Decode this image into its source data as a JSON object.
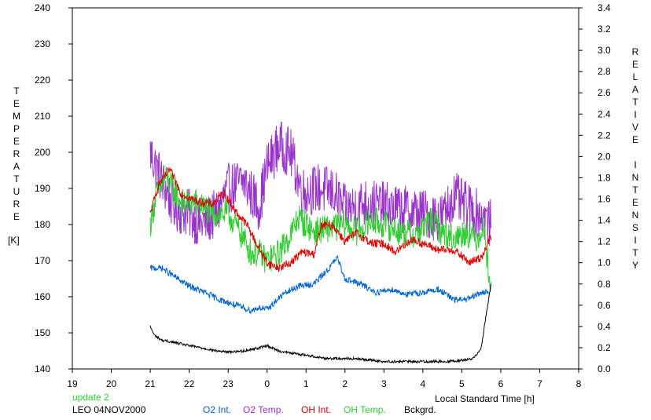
{
  "chart_data": {
    "type": "line",
    "title": "",
    "xlabel": "Local Standard Time [h]",
    "ylabel_left_letters": [
      "T",
      "E",
      "M",
      "P",
      "E",
      "R",
      "A",
      "T",
      "U",
      "R",
      "E"
    ],
    "ylabel_left_unit": "[K]",
    "ylabel_right_word1": [
      "R",
      "E",
      "L",
      "A",
      "T",
      "I",
      "V",
      "E"
    ],
    "ylabel_right_word2": [
      "I",
      "N",
      "T",
      "E",
      "N",
      "S",
      "I",
      "T",
      "Y"
    ],
    "x_ticks": [
      "19",
      "20",
      "21",
      "22",
      "23",
      "0",
      "1",
      "2",
      "3",
      "4",
      "5",
      "6",
      "7",
      "8"
    ],
    "y_left_ticks": [
      "140",
      "150",
      "160",
      "170",
      "180",
      "190",
      "200",
      "210",
      "220",
      "230",
      "240"
    ],
    "y_left_lim": [
      140,
      240
    ],
    "y_right_ticks": [
      "0.0",
      "0.2",
      "0.4",
      "0.6",
      "0.8",
      "1.0",
      "1.2",
      "1.4",
      "1.6",
      "1.8",
      "2.0",
      "2.2",
      "2.4",
      "2.6",
      "2.8",
      "3.0",
      "3.2",
      "3.4"
    ],
    "y_right_lim": [
      0,
      3.4
    ],
    "x_range_hours_from_19": [
      0,
      13
    ],
    "series": [
      {
        "name": "O2 Temp.",
        "color": "#9933cc",
        "axis": "left",
        "noise": 7,
        "points": [
          [
            21.0,
            200
          ],
          [
            21.3,
            192
          ],
          [
            21.6,
            185
          ],
          [
            22.0,
            183
          ],
          [
            22.3,
            180
          ],
          [
            22.7,
            183
          ],
          [
            23.0,
            190
          ],
          [
            23.4,
            192
          ],
          [
            23.8,
            185
          ],
          [
            24.0,
            196
          ],
          [
            24.3,
            202
          ],
          [
            24.6,
            200
          ],
          [
            24.9,
            189
          ],
          [
            25.3,
            190
          ],
          [
            25.7,
            189
          ],
          [
            26.0,
            184
          ],
          [
            26.5,
            186
          ],
          [
            27.0,
            185
          ],
          [
            27.5,
            184
          ],
          [
            28.0,
            183
          ],
          [
            28.5,
            182
          ],
          [
            28.8,
            188
          ],
          [
            29.1,
            185
          ],
          [
            29.4,
            183
          ],
          [
            29.5,
            183
          ],
          [
            29.75,
            180
          ]
        ]
      },
      {
        "name": "OH Temp.",
        "color": "#33cc33",
        "axis": "left",
        "noise": 4,
        "points": [
          [
            21.0,
            180
          ],
          [
            21.15,
            188
          ],
          [
            21.4,
            193
          ],
          [
            21.8,
            186
          ],
          [
            22.2,
            186
          ],
          [
            22.6,
            183
          ],
          [
            23.0,
            183
          ],
          [
            23.3,
            178
          ],
          [
            23.6,
            172
          ],
          [
            23.8,
            172
          ],
          [
            24.0,
            170
          ],
          [
            24.3,
            172
          ],
          [
            24.6,
            177
          ],
          [
            24.8,
            182
          ],
          [
            25.2,
            178
          ],
          [
            25.6,
            179
          ],
          [
            26.0,
            180
          ],
          [
            26.3,
            178
          ],
          [
            26.7,
            181
          ],
          [
            27.0,
            180
          ],
          [
            27.4,
            178
          ],
          [
            27.8,
            177
          ],
          [
            28.2,
            181
          ],
          [
            28.5,
            178
          ],
          [
            28.8,
            176
          ],
          [
            29.1,
            178
          ],
          [
            29.4,
            176
          ],
          [
            29.55,
            180
          ],
          [
            29.75,
            162
          ]
        ]
      },
      {
        "name": "OH Int.",
        "color": "#dd0000",
        "axis": "right",
        "noise": 0.04,
        "points": [
          [
            21.0,
            1.45
          ],
          [
            21.2,
            1.72
          ],
          [
            21.5,
            1.88
          ],
          [
            21.8,
            1.65
          ],
          [
            22.2,
            1.58
          ],
          [
            22.6,
            1.55
          ],
          [
            22.9,
            1.66
          ],
          [
            23.2,
            1.48
          ],
          [
            23.5,
            1.35
          ],
          [
            23.7,
            1.2
          ],
          [
            24.0,
            1.0
          ],
          [
            24.3,
            0.95
          ],
          [
            24.6,
            1.0
          ],
          [
            24.9,
            1.1
          ],
          [
            25.2,
            1.08
          ],
          [
            25.4,
            1.35
          ],
          [
            25.7,
            1.35
          ],
          [
            26.0,
            1.2
          ],
          [
            26.3,
            1.28
          ],
          [
            26.7,
            1.18
          ],
          [
            27.0,
            1.18
          ],
          [
            27.3,
            1.1
          ],
          [
            27.7,
            1.22
          ],
          [
            28.0,
            1.18
          ],
          [
            28.4,
            1.12
          ],
          [
            28.8,
            1.12
          ],
          [
            29.2,
            1.0
          ],
          [
            29.5,
            1.05
          ],
          [
            29.75,
            1.25
          ]
        ]
      },
      {
        "name": "O2 Int.",
        "color": "#0066cc",
        "axis": "right",
        "noise": 0.03,
        "points": [
          [
            21.0,
            0.95
          ],
          [
            21.3,
            0.95
          ],
          [
            21.7,
            0.85
          ],
          [
            22.0,
            0.78
          ],
          [
            22.4,
            0.72
          ],
          [
            22.8,
            0.65
          ],
          [
            23.2,
            0.6
          ],
          [
            23.6,
            0.55
          ],
          [
            23.8,
            0.58
          ],
          [
            24.0,
            0.56
          ],
          [
            24.4,
            0.7
          ],
          [
            24.8,
            0.78
          ],
          [
            25.2,
            0.8
          ],
          [
            25.6,
            0.95
          ],
          [
            25.8,
            1.05
          ],
          [
            26.0,
            0.85
          ],
          [
            26.4,
            0.8
          ],
          [
            26.8,
            0.72
          ],
          [
            27.2,
            0.75
          ],
          [
            27.6,
            0.7
          ],
          [
            28.0,
            0.72
          ],
          [
            28.4,
            0.75
          ],
          [
            28.8,
            0.65
          ],
          [
            29.2,
            0.66
          ],
          [
            29.5,
            0.72
          ],
          [
            29.7,
            0.72
          ]
        ]
      },
      {
        "name": "Bckgrd.",
        "color": "#000000",
        "axis": "right",
        "noise": 0.012,
        "points": [
          [
            21.0,
            0.4
          ],
          [
            21.1,
            0.32
          ],
          [
            21.3,
            0.27
          ],
          [
            21.6,
            0.25
          ],
          [
            22.0,
            0.22
          ],
          [
            22.3,
            0.2
          ],
          [
            22.7,
            0.17
          ],
          [
            23.0,
            0.16
          ],
          [
            23.4,
            0.17
          ],
          [
            23.8,
            0.2
          ],
          [
            24.0,
            0.22
          ],
          [
            24.3,
            0.17
          ],
          [
            24.6,
            0.15
          ],
          [
            25.0,
            0.13
          ],
          [
            25.5,
            0.1
          ],
          [
            26.0,
            0.1
          ],
          [
            26.5,
            0.09
          ],
          [
            27.0,
            0.07
          ],
          [
            27.5,
            0.07
          ],
          [
            28.0,
            0.07
          ],
          [
            28.5,
            0.07
          ],
          [
            29.0,
            0.08
          ],
          [
            29.3,
            0.1
          ],
          [
            29.5,
            0.2
          ],
          [
            29.6,
            0.45
          ],
          [
            29.75,
            0.8
          ]
        ]
      }
    ]
  },
  "annotations": {
    "update_label": "update 2",
    "station_date": "LEO 04NOV2000"
  },
  "legend": [
    {
      "label": "O2 Int.",
      "color": "#0066cc"
    },
    {
      "label": "O2 Temp.",
      "color": "#9933cc"
    },
    {
      "label": "OH Int.",
      "color": "#dd0000"
    },
    {
      "label": "OH Temp.",
      "color": "#33cc33"
    },
    {
      "label": "Bckgrd.",
      "color": "#000000"
    }
  ],
  "colors": {
    "update_label": "#33cc33",
    "axes": "#000000",
    "background": "#ffffff"
  }
}
